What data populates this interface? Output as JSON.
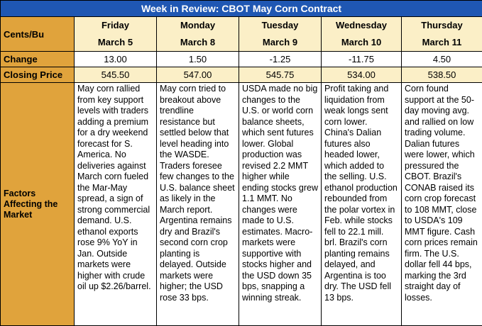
{
  "title": "Week in Review: CBOT May Corn Contract",
  "row_labels": {
    "units": "Cents/Bu",
    "change": "Change",
    "closing": "Closing Price",
    "factors": "Factors Affecting the Market"
  },
  "days": [
    {
      "day": "Friday",
      "date": "March 5",
      "change": "13.00",
      "closing": "545.50",
      "factors": "May corn rallied from key support levels with traders adding a premium for a dry weekend forecast for S. America. No deliveries against March corn fueled the Mar-May spread, a sign of strong commercial demand. U.S. ethanol exports rose 9% YoY in Jan. Outside markets were higher with crude oil up $2.26/barrel."
    },
    {
      "day": "Monday",
      "date": "March 8",
      "change": "1.50",
      "closing": "547.00",
      "factors": "May corn tried to breakout above trendline resistance but settled below that level heading into the WASDE. Traders foresee few changes to the U.S. balance sheet as likely in the March report. Argentina remains dry and Brazil's second corn crop planting is delayed. Outside markets were higher; the USD rose 33 bps."
    },
    {
      "day": "Tuesday",
      "date": "March 9",
      "change": "-1.25",
      "closing": "545.75",
      "factors": "USDA made no big changes to the U.S. or world corn balance sheets, which sent futures lower. Global production was revised 2.2 MMT higher while ending stocks grew 1.1 MMT. No changes were made to U.S. estimates. Macro-markets were supportive with stocks higher and the USD down 35 bps, snapping a winning streak."
    },
    {
      "day": "Wednesday",
      "date": "March 10",
      "change": "-11.75",
      "closing": "534.00",
      "factors": "Profit taking and liquidation from weak longs sent corn lower. China's Dalian futures also headed lower, which added to the selling. U.S. ethanol production rebounded from the polar vortex in Feb. while stocks fell to 22.1 mill. brl. Brazil's corn planting remains delayed, and Argentina is too dry. The USD fell 13 bps."
    },
    {
      "day": "Thursday",
      "date": "March 11",
      "change": "4.50",
      "closing": "538.50",
      "factors": "Corn found support at the 50-day moving avg. and rallied on low trading volume. Dalian futures were lower, which pressured the CBOT. Brazil's CONAB raised its corn crop forecast to 108 MMT, close to USDA's 109 MMT figure. Cash corn prices remain firm. The U.S. dollar fell 44 bps, marking the 3rd straight day of losses."
    }
  ]
}
